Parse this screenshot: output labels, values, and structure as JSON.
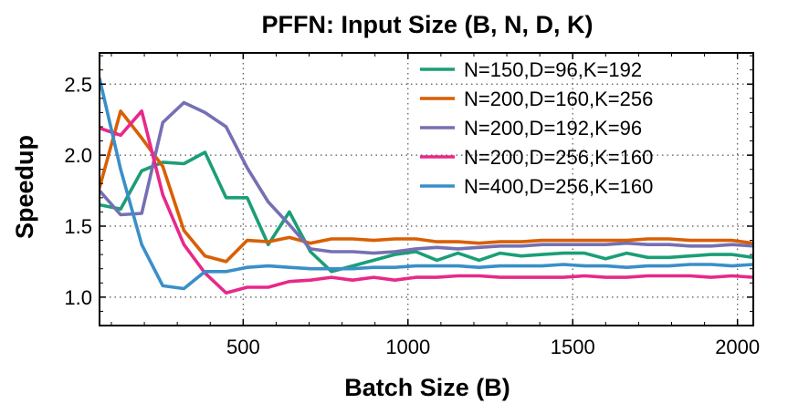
{
  "chart_data": {
    "type": "line",
    "title": "PFFN: Input Size (B, N, D, K)",
    "xlabel": "Batch Size (B)",
    "ylabel": "Speedup",
    "xlim": [
      64,
      2048
    ],
    "ylim": [
      0.8,
      2.72
    ],
    "xticks": [
      500,
      1000,
      1500,
      2000
    ],
    "xtick_labels": [
      "500",
      "1000",
      "1500",
      "2000"
    ],
    "yticks": [
      1.0,
      1.5,
      2.0,
      2.5
    ],
    "ytick_labels": [
      "1.0",
      "1.5",
      "2.0",
      "2.5"
    ],
    "grid": true,
    "legend_position": "top-right",
    "x": [
      64,
      128,
      192,
      256,
      320,
      384,
      448,
      512,
      576,
      640,
      704,
      768,
      832,
      896,
      960,
      1024,
      1088,
      1152,
      1216,
      1280,
      1344,
      1408,
      1472,
      1536,
      1600,
      1664,
      1728,
      1792,
      1856,
      1920,
      1984,
      2048
    ],
    "series": [
      {
        "name": "N=150,D=96,K=192",
        "color": "#1b9e77",
        "values": [
          1.65,
          1.62,
          1.89,
          1.95,
          1.94,
          2.02,
          1.7,
          1.7,
          1.37,
          1.6,
          1.32,
          1.18,
          1.22,
          1.26,
          1.3,
          1.32,
          1.26,
          1.31,
          1.26,
          1.31,
          1.29,
          1.3,
          1.31,
          1.31,
          1.27,
          1.31,
          1.28,
          1.28,
          1.29,
          1.3,
          1.3,
          1.28
        ]
      },
      {
        "name": "N=200,D=160,K=256",
        "color": "#d95f02",
        "values": [
          1.77,
          2.31,
          2.12,
          1.92,
          1.47,
          1.29,
          1.25,
          1.4,
          1.39,
          1.42,
          1.38,
          1.41,
          1.41,
          1.4,
          1.41,
          1.41,
          1.39,
          1.39,
          1.38,
          1.39,
          1.39,
          1.4,
          1.4,
          1.4,
          1.4,
          1.4,
          1.41,
          1.41,
          1.4,
          1.4,
          1.4,
          1.38
        ]
      },
      {
        "name": "N=200,D=192,K=96",
        "color": "#7570b3",
        "values": [
          1.75,
          1.58,
          1.59,
          2.23,
          2.37,
          2.3,
          2.2,
          1.91,
          1.67,
          1.51,
          1.34,
          1.32,
          1.32,
          1.31,
          1.32,
          1.34,
          1.35,
          1.34,
          1.35,
          1.36,
          1.36,
          1.37,
          1.37,
          1.37,
          1.37,
          1.38,
          1.37,
          1.37,
          1.36,
          1.36,
          1.37,
          1.36
        ]
      },
      {
        "name": "N=200,D=256,K=160",
        "color": "#e7298a",
        "values": [
          2.19,
          2.14,
          2.31,
          1.72,
          1.37,
          1.17,
          1.03,
          1.07,
          1.07,
          1.11,
          1.12,
          1.14,
          1.12,
          1.14,
          1.12,
          1.14,
          1.14,
          1.15,
          1.15,
          1.14,
          1.14,
          1.14,
          1.14,
          1.15,
          1.14,
          1.14,
          1.15,
          1.15,
          1.15,
          1.14,
          1.15,
          1.14
        ]
      },
      {
        "name": "N=400,D=256,K=160",
        "color": "#3a8fc9",
        "values": [
          2.54,
          1.9,
          1.37,
          1.08,
          1.06,
          1.18,
          1.18,
          1.21,
          1.22,
          1.21,
          1.2,
          1.2,
          1.2,
          1.21,
          1.21,
          1.22,
          1.22,
          1.22,
          1.21,
          1.22,
          1.22,
          1.22,
          1.23,
          1.22,
          1.22,
          1.21,
          1.22,
          1.22,
          1.23,
          1.23,
          1.22,
          1.23
        ]
      }
    ]
  }
}
